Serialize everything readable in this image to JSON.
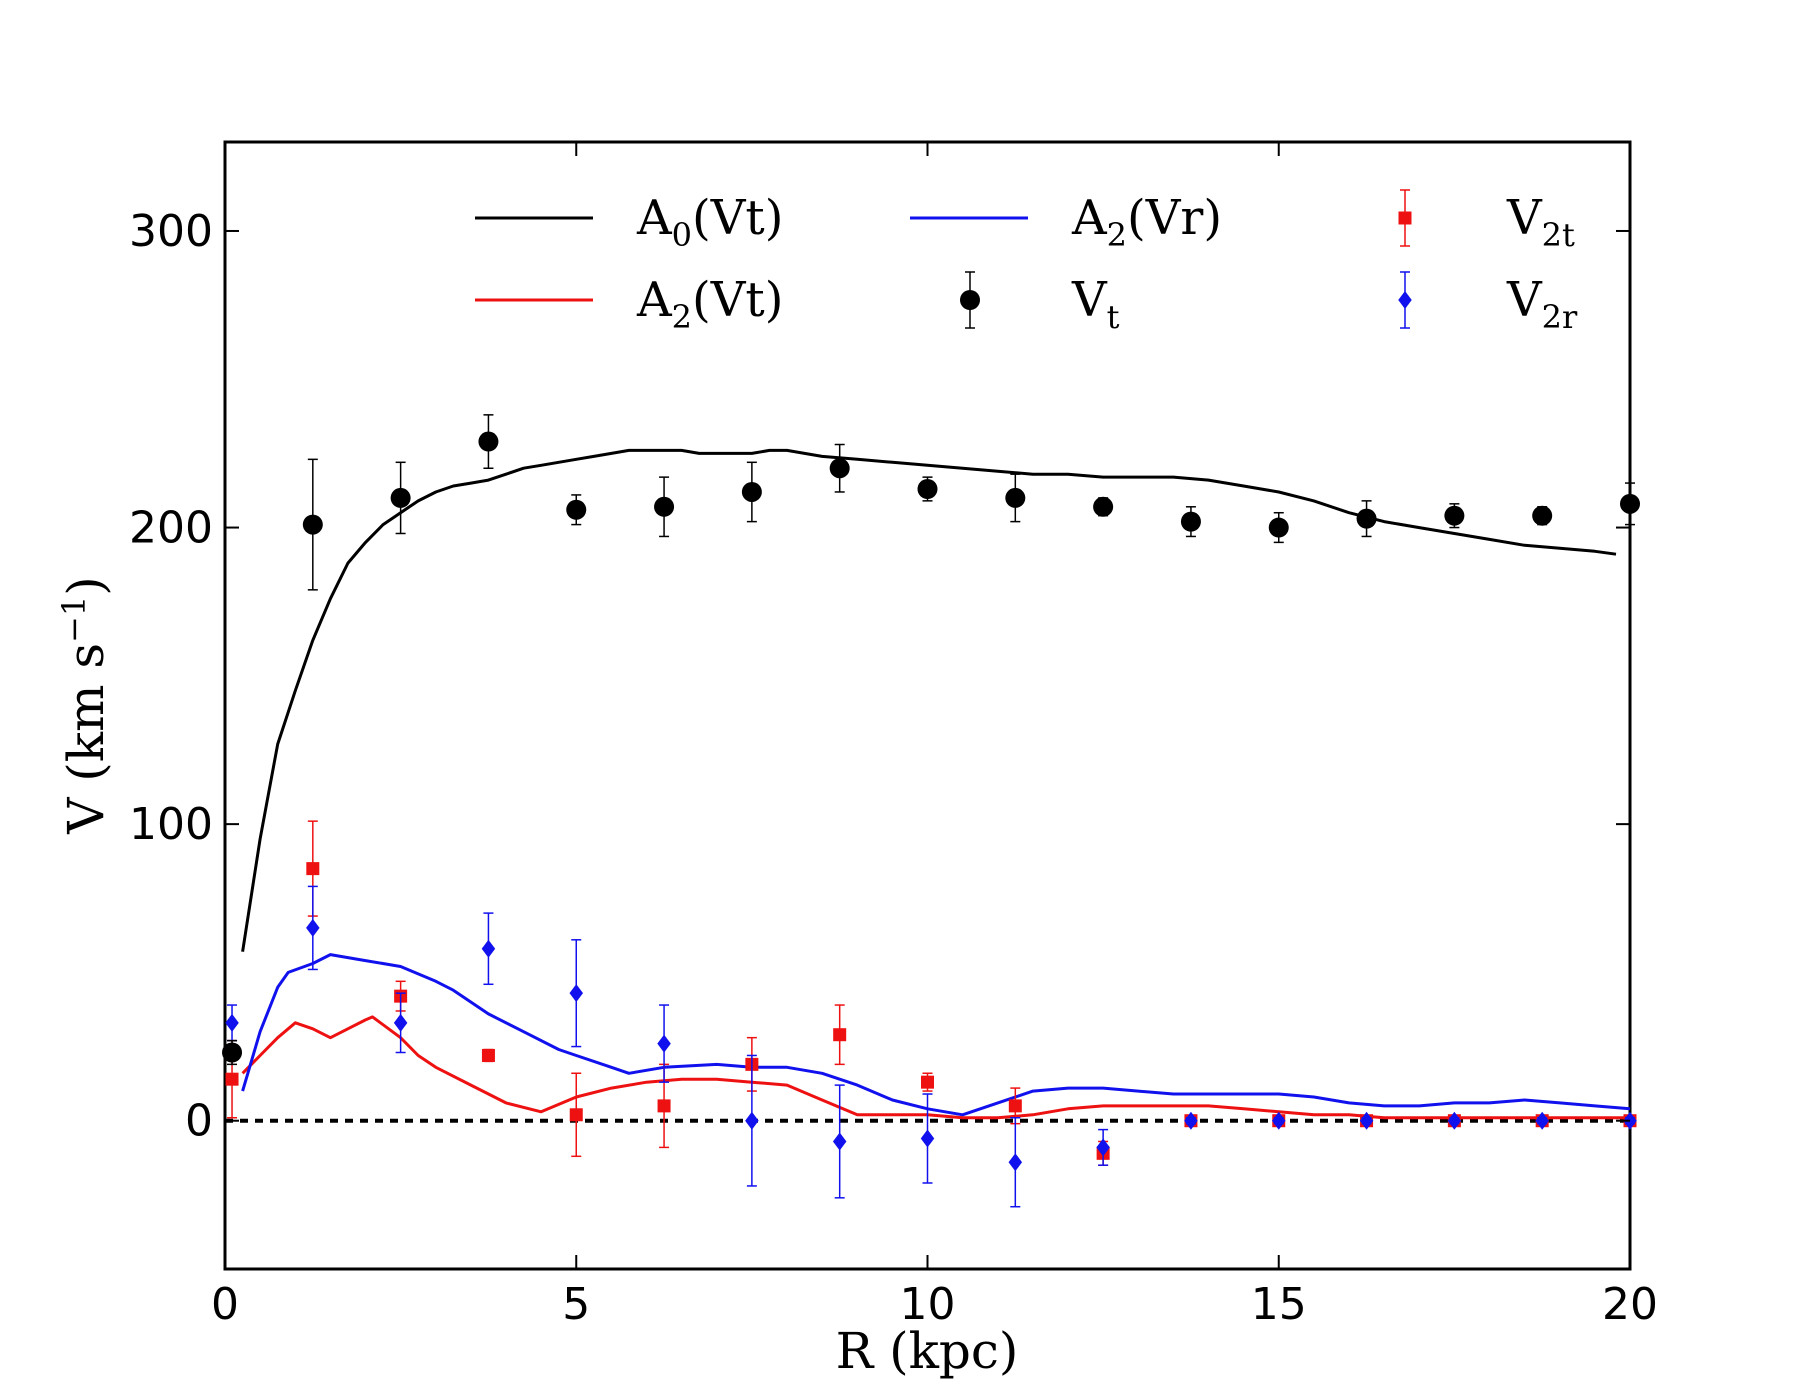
{
  "chart_data": {
    "type": "line",
    "xlabel": "R (kpc)",
    "ylabel": {
      "main": "V (km s",
      "exp": "−1",
      "close": ")"
    },
    "xlim": [
      0,
      20
    ],
    "ylim": [
      -50,
      330
    ],
    "xticks": [
      0,
      5,
      10,
      15,
      20
    ],
    "yticks": [
      0,
      100,
      200,
      300
    ],
    "zero_line": true,
    "lines": [
      {
        "name": "A0(Vt)",
        "color": "#000000",
        "x": [
          0.25,
          0.5,
          0.75,
          1.0,
          1.25,
          1.5,
          1.75,
          2.0,
          2.25,
          2.5,
          2.75,
          3.0,
          3.25,
          3.5,
          3.75,
          4.0,
          4.25,
          4.5,
          4.75,
          5.0,
          5.25,
          5.5,
          5.75,
          6.0,
          6.25,
          6.5,
          6.75,
          7.0,
          7.25,
          7.5,
          7.75,
          8.0,
          8.5,
          9.0,
          9.5,
          10.0,
          10.5,
          11.0,
          11.5,
          12.0,
          12.5,
          13.0,
          13.5,
          14.0,
          14.5,
          15.0,
          15.5,
          16.0,
          16.5,
          17.0,
          17.5,
          18.0,
          18.5,
          19.0,
          19.5,
          19.8
        ],
        "y": [
          57,
          95,
          127,
          145,
          162,
          176,
          188,
          195,
          201,
          205,
          209,
          212,
          214,
          215,
          216,
          218,
          220,
          221,
          222,
          223,
          224,
          225,
          226,
          226,
          226,
          226,
          225,
          225,
          225,
          225,
          226,
          226,
          224,
          223,
          222,
          221,
          220,
          219,
          218,
          218,
          217,
          217,
          217,
          216,
          214,
          212,
          209,
          205,
          202,
          200,
          198,
          196,
          194,
          193,
          192,
          191
        ]
      },
      {
        "name": "A2(Vt)",
        "color": "#ee1111",
        "x": [
          0.25,
          0.5,
          0.75,
          1.0,
          1.25,
          1.5,
          1.75,
          2.0,
          2.1,
          2.5,
          2.75,
          3.0,
          3.5,
          4.0,
          4.5,
          5.0,
          5.5,
          6.0,
          6.5,
          7.0,
          7.5,
          8.0,
          8.5,
          9.0,
          9.5,
          10.0,
          10.5,
          11.0,
          11.5,
          12.0,
          12.5,
          13.0,
          13.5,
          14.0,
          14.5,
          15.0,
          15.5,
          16.0,
          16.5,
          17.0,
          17.5,
          18.0,
          18.5,
          19.0,
          19.5,
          20.0
        ],
        "y": [
          16,
          22,
          28,
          33,
          31,
          28,
          31,
          34,
          35,
          28,
          22,
          18,
          12,
          6,
          3,
          8,
          11,
          13,
          14,
          14,
          13,
          12,
          7,
          2,
          2,
          2,
          1,
          1,
          2,
          4,
          5,
          5,
          5,
          5,
          4,
          3,
          2,
          2,
          1,
          1,
          1,
          1,
          1,
          1,
          1,
          1
        ]
      },
      {
        "name": "A2(Vr)",
        "color": "#1111ee",
        "x": [
          0.25,
          0.5,
          0.75,
          0.9,
          1.25,
          1.5,
          1.75,
          2.0,
          2.5,
          3.0,
          3.25,
          3.75,
          4.25,
          4.75,
          5.0,
          5.5,
          5.75,
          6.25,
          7.0,
          7.5,
          8.0,
          8.5,
          9.0,
          9.5,
          10.0,
          10.5,
          11.0,
          11.5,
          12.0,
          12.5,
          13.0,
          13.5,
          14.0,
          14.5,
          15.0,
          15.5,
          16.0,
          16.5,
          17.0,
          17.5,
          18.0,
          18.5,
          19.0,
          19.5,
          20.0
        ],
        "y": [
          10,
          30,
          45,
          50,
          53,
          56,
          55,
          54,
          52,
          47,
          44,
          36,
          30,
          24,
          22,
          18,
          16,
          18,
          19,
          18,
          18,
          16,
          12,
          7,
          4,
          2,
          6,
          10,
          11,
          11,
          10,
          9,
          9,
          9,
          9,
          8,
          6,
          5,
          5,
          6,
          6,
          7,
          6,
          5,
          4
        ]
      }
    ],
    "vt_points": {
      "name": "Vt",
      "color": "#000000",
      "x": [
        0.1,
        1.25,
        2.5,
        3.75,
        5.0,
        6.25,
        7.5,
        8.75,
        10.0,
        11.25,
        12.5,
        13.75,
        15.0,
        16.25,
        17.5,
        18.75,
        20.0
      ],
      "y": [
        23,
        201,
        210,
        229,
        206,
        207,
        212,
        220,
        213,
        210,
        207,
        202,
        200,
        203,
        204,
        204,
        208
      ],
      "err": [
        4,
        22,
        12,
        9,
        5,
        10,
        10,
        8,
        4,
        8,
        3,
        5,
        5,
        6,
        4,
        3,
        7
      ]
    },
    "v2t_points": {
      "name": "V2t",
      "color": "#ee1111",
      "x": [
        0.1,
        1.25,
        2.5,
        3.75,
        5.0,
        6.25,
        7.5,
        8.75,
        10.0,
        11.25,
        12.5,
        13.75,
        15.0,
        16.25,
        17.5,
        18.75,
        20.0
      ],
      "y": [
        14,
        85,
        42,
        22,
        2,
        5,
        19,
        29,
        13,
        5,
        -11,
        0,
        0,
        0,
        0,
        0,
        0
      ],
      "err": [
        13,
        16,
        5,
        2,
        14,
        14,
        9,
        10,
        3,
        6,
        4,
        1,
        1,
        1,
        1,
        1,
        1
      ]
    },
    "v2r_points": {
      "name": "V2r",
      "color": "#1111ee",
      "x": [
        0.1,
        1.25,
        2.5,
        3.75,
        5.0,
        6.25,
        7.5,
        8.75,
        10.0,
        11.25,
        12.5,
        13.75,
        15.0,
        16.25,
        17.5,
        18.75,
        20.0
      ],
      "y": [
        33,
        65,
        33,
        58,
        43,
        26,
        0,
        -7,
        -6,
        -14,
        -9,
        0,
        0,
        0,
        0,
        0,
        0
      ],
      "err": [
        6,
        14,
        10,
        12,
        18,
        13,
        22,
        19,
        15,
        15,
        6,
        1,
        1,
        1,
        1,
        1,
        1
      ]
    },
    "legend": {
      "position": "top",
      "entries": [
        {
          "base": "A",
          "sub": "0",
          "rest": "(Vt)",
          "kind": "line",
          "color": "#000000"
        },
        {
          "base": "A",
          "sub": "2",
          "rest": "(Vt)",
          "kind": "line",
          "color": "#ee1111"
        },
        {
          "base": "A",
          "sub": "2",
          "rest": "(Vr)",
          "kind": "line",
          "color": "#1111ee"
        },
        {
          "base": "V",
          "sub": "t",
          "rest": "",
          "kind": "circle",
          "color": "#000000"
        },
        {
          "base": "V",
          "sub": "2t",
          "rest": "",
          "kind": "square",
          "color": "#ee1111"
        },
        {
          "base": "V",
          "sub": "2r",
          "rest": "",
          "kind": "diamond",
          "color": "#1111ee"
        }
      ]
    }
  }
}
